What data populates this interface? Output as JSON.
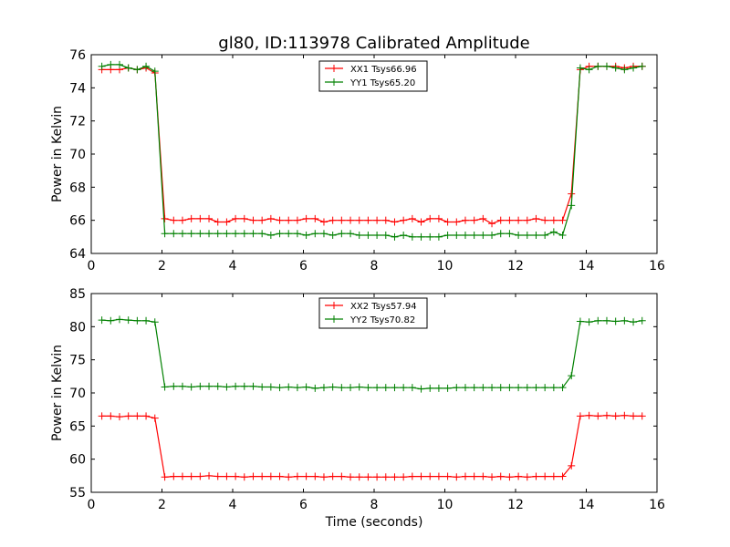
{
  "figure_title": "gl80, ID:113978 Calibrated Amplitude",
  "colors": {
    "xx": "#ff0000",
    "yy": "#008000"
  },
  "chart_data": [
    {
      "type": "line",
      "title": "gl80, ID:113978 Calibrated Amplitude",
      "xlabel": "",
      "ylabel": "Power in Kelvin",
      "xlim": [
        0,
        16
      ],
      "ylim": [
        64,
        76
      ],
      "xticks": [
        "0",
        "2",
        "4",
        "6",
        "8",
        "10",
        "12",
        "14",
        "16"
      ],
      "yticks": [
        "64",
        "66",
        "68",
        "70",
        "72",
        "74",
        "76"
      ],
      "grid": false,
      "legend_position": "top-center",
      "x": [
        0.3,
        0.55,
        0.8,
        1.05,
        1.3,
        1.55,
        1.8,
        2.08,
        2.33,
        2.58,
        2.83,
        3.08,
        3.33,
        3.58,
        3.83,
        4.08,
        4.33,
        4.58,
        4.83,
        5.08,
        5.33,
        5.58,
        5.83,
        6.08,
        6.33,
        6.58,
        6.83,
        7.08,
        7.33,
        7.58,
        7.83,
        8.08,
        8.33,
        8.58,
        8.83,
        9.08,
        9.33,
        9.58,
        9.83,
        10.08,
        10.33,
        10.58,
        10.83,
        11.08,
        11.33,
        11.58,
        11.83,
        12.08,
        12.33,
        12.58,
        12.83,
        13.08,
        13.33,
        13.58,
        13.83,
        14.08,
        14.33,
        14.58,
        14.83,
        15.08,
        15.33,
        15.58
      ],
      "series": [
        {
          "name": "XX1 Tsys66.96",
          "color": "#ff0000",
          "values": [
            75.1,
            75.1,
            75.1,
            75.2,
            75.1,
            75.2,
            74.9,
            66.1,
            66.0,
            66.0,
            66.1,
            66.1,
            66.1,
            65.9,
            65.9,
            66.1,
            66.1,
            66.0,
            66.0,
            66.1,
            66.0,
            66.0,
            66.0,
            66.1,
            66.1,
            65.9,
            66.0,
            66.0,
            66.0,
            66.0,
            66.0,
            66.0,
            66.0,
            65.9,
            66.0,
            66.1,
            65.9,
            66.1,
            66.1,
            65.9,
            65.9,
            66.0,
            66.0,
            66.1,
            65.8,
            66.0,
            66.0,
            66.0,
            66.0,
            66.1,
            66.0,
            66.0,
            66.0,
            67.6,
            75.1,
            75.3,
            75.3,
            75.3,
            75.3,
            75.2,
            75.3,
            75.3
          ]
        },
        {
          "name": "YY1 Tsys65.20",
          "color": "#008000",
          "values": [
            75.3,
            75.4,
            75.4,
            75.2,
            75.1,
            75.3,
            75.0,
            65.2,
            65.2,
            65.2,
            65.2,
            65.2,
            65.2,
            65.2,
            65.2,
            65.2,
            65.2,
            65.2,
            65.2,
            65.1,
            65.2,
            65.2,
            65.2,
            65.1,
            65.2,
            65.2,
            65.1,
            65.2,
            65.2,
            65.1,
            65.1,
            65.1,
            65.1,
            65.0,
            65.1,
            65.0,
            65.0,
            65.0,
            65.0,
            65.1,
            65.1,
            65.1,
            65.1,
            65.1,
            65.1,
            65.2,
            65.2,
            65.1,
            65.1,
            65.1,
            65.1,
            65.3,
            65.1,
            66.9,
            75.2,
            75.1,
            75.3,
            75.3,
            75.2,
            75.1,
            75.2,
            75.3
          ]
        }
      ]
    },
    {
      "type": "line",
      "title": "",
      "xlabel": "Time (seconds)",
      "ylabel": "Power in Kelvin",
      "xlim": [
        0,
        16
      ],
      "ylim": [
        55,
        85
      ],
      "xticks": [
        "0",
        "2",
        "4",
        "6",
        "8",
        "10",
        "12",
        "14",
        "16"
      ],
      "yticks": [
        "55",
        "60",
        "65",
        "70",
        "75",
        "80",
        "85"
      ],
      "grid": false,
      "legend_position": "top-center",
      "x": [
        0.3,
        0.55,
        0.8,
        1.05,
        1.3,
        1.55,
        1.8,
        2.08,
        2.33,
        2.58,
        2.83,
        3.08,
        3.33,
        3.58,
        3.83,
        4.08,
        4.33,
        4.58,
        4.83,
        5.08,
        5.33,
        5.58,
        5.83,
        6.08,
        6.33,
        6.58,
        6.83,
        7.08,
        7.33,
        7.58,
        7.83,
        8.08,
        8.33,
        8.58,
        8.83,
        9.08,
        9.33,
        9.58,
        9.83,
        10.08,
        10.33,
        10.58,
        10.83,
        11.08,
        11.33,
        11.58,
        11.83,
        12.08,
        12.33,
        12.58,
        12.83,
        13.08,
        13.33,
        13.58,
        13.83,
        14.08,
        14.33,
        14.58,
        14.83,
        15.08,
        15.33,
        15.58
      ],
      "series": [
        {
          "name": "XX2 Tsys57.94",
          "color": "#ff0000",
          "values": [
            66.5,
            66.5,
            66.4,
            66.5,
            66.5,
            66.5,
            66.2,
            57.3,
            57.4,
            57.4,
            57.4,
            57.4,
            57.5,
            57.4,
            57.4,
            57.4,
            57.3,
            57.4,
            57.4,
            57.4,
            57.4,
            57.3,
            57.4,
            57.4,
            57.4,
            57.3,
            57.4,
            57.4,
            57.3,
            57.3,
            57.3,
            57.3,
            57.3,
            57.3,
            57.3,
            57.4,
            57.4,
            57.4,
            57.4,
            57.4,
            57.3,
            57.4,
            57.4,
            57.4,
            57.3,
            57.4,
            57.3,
            57.4,
            57.3,
            57.4,
            57.4,
            57.4,
            57.4,
            59.0,
            66.5,
            66.6,
            66.5,
            66.6,
            66.5,
            66.6,
            66.5,
            66.5
          ]
        },
        {
          "name": "YY2 Tsys70.82",
          "color": "#008000",
          "values": [
            81.0,
            80.9,
            81.1,
            81.0,
            80.9,
            80.9,
            80.7,
            70.9,
            71.0,
            71.0,
            70.9,
            71.0,
            71.0,
            71.0,
            70.9,
            71.0,
            71.0,
            71.0,
            70.9,
            70.9,
            70.8,
            70.9,
            70.8,
            70.9,
            70.7,
            70.8,
            70.9,
            70.8,
            70.8,
            70.9,
            70.8,
            70.8,
            70.8,
            70.8,
            70.8,
            70.8,
            70.6,
            70.7,
            70.7,
            70.7,
            70.8,
            70.8,
            70.8,
            70.8,
            70.8,
            70.8,
            70.8,
            70.8,
            70.8,
            70.8,
            70.8,
            70.8,
            70.8,
            72.6,
            80.8,
            80.7,
            80.9,
            80.9,
            80.8,
            80.9,
            80.7,
            80.9
          ]
        }
      ]
    }
  ]
}
